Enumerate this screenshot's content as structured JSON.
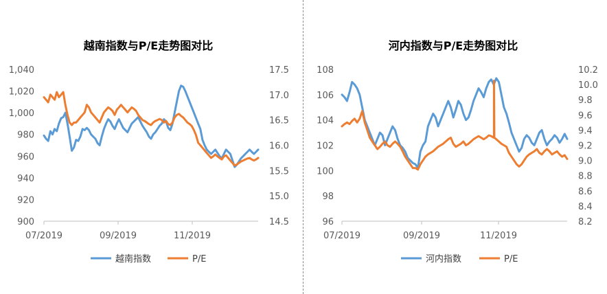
{
  "colors": {
    "index_line": "#5B9BD5",
    "pe_line": "#ED7D31",
    "axis": "#bfbfbf",
    "text": "#595959"
  },
  "chart_data": [
    {
      "type": "line",
      "title": "越南指数与P/E走势图对比",
      "x_tick_labels": [
        "07/2019",
        "09/2019",
        "11/2019"
      ],
      "y_left": {
        "ylim": [
          900,
          1040
        ],
        "ticks": [
          "1,040",
          "1,020",
          "1,000",
          "980",
          "960",
          "940",
          "920",
          "900"
        ]
      },
      "y_right": {
        "ylim": [
          14.5,
          17.5
        ],
        "ticks": [
          "17.5",
          "17.0",
          "16.5",
          "16.0",
          "15.5",
          "15.0",
          "14.5"
        ]
      },
      "legend_position": "bottom",
      "series": [
        {
          "name": "越南指数",
          "axis": "left",
          "color": "#5B9BD5",
          "values": [
            979,
            976,
            974,
            983,
            980,
            985,
            983,
            990,
            995,
            996,
            1000,
            990,
            978,
            965,
            968,
            975,
            974,
            978,
            985,
            984,
            986,
            984,
            980,
            978,
            976,
            972,
            970,
            978,
            985,
            990,
            994,
            992,
            988,
            985,
            990,
            994,
            990,
            986,
            984,
            982,
            986,
            990,
            992,
            994,
            996,
            992,
            988,
            985,
            982,
            978,
            976,
            980,
            982,
            985,
            988,
            990,
            994,
            992,
            986,
            984,
            990,
            1000,
            1010,
            1020,
            1025,
            1024,
            1020,
            1015,
            1010,
            1005,
            1000,
            995,
            990,
            985,
            975,
            970,
            966,
            964,
            962,
            964,
            966,
            963,
            960,
            958,
            962,
            966,
            964,
            962,
            956,
            950,
            952,
            955,
            958,
            960,
            962,
            964,
            966,
            964,
            962,
            964,
            966
          ]
        },
        {
          "name": "P/E",
          "axis": "right",
          "color": "#ED7D31",
          "values": [
            16.95,
            16.9,
            16.85,
            17.0,
            16.95,
            16.9,
            17.05,
            16.95,
            17.0,
            17.05,
            16.8,
            16.6,
            16.45,
            16.4,
            16.45,
            16.45,
            16.5,
            16.55,
            16.6,
            16.65,
            16.8,
            16.75,
            16.65,
            16.6,
            16.55,
            16.5,
            16.45,
            16.55,
            16.65,
            16.7,
            16.75,
            16.72,
            16.68,
            16.6,
            16.7,
            16.75,
            16.8,
            16.75,
            16.7,
            16.65,
            16.7,
            16.75,
            16.72,
            16.68,
            16.6,
            16.55,
            16.5,
            16.48,
            16.45,
            16.42,
            16.4,
            16.45,
            16.48,
            16.5,
            16.52,
            16.5,
            16.45,
            16.48,
            16.42,
            16.4,
            16.45,
            16.55,
            16.6,
            16.62,
            16.58,
            16.55,
            16.5,
            16.45,
            16.42,
            16.38,
            16.3,
            16.2,
            16.05,
            16.0,
            15.95,
            15.9,
            15.85,
            15.8,
            15.75,
            15.78,
            15.82,
            15.78,
            15.75,
            15.72,
            15.78,
            15.8,
            15.75,
            15.7,
            15.65,
            15.6,
            15.62,
            15.65,
            15.68,
            15.7,
            15.72,
            15.74,
            15.75,
            15.72,
            15.7,
            15.72,
            15.75
          ]
        }
      ]
    },
    {
      "type": "line",
      "title": "河内指数与P/E走势图对比",
      "x_tick_labels": [
        "07/2019",
        "09/2019",
        "11/2019"
      ],
      "y_left": {
        "ylim": [
          96,
          108
        ],
        "ticks": [
          "108",
          "106",
          "104",
          "102",
          "100",
          "98",
          "96"
        ]
      },
      "y_right": {
        "ylim": [
          8.2,
          10.2
        ],
        "ticks": [
          "10.2",
          "10.0",
          "9.8",
          "9.6",
          "9.4",
          "9.2",
          "9.0",
          "8.8",
          "8.6",
          "8.4",
          "8.2"
        ]
      },
      "legend_position": "bottom",
      "series": [
        {
          "name": "河内指数",
          "axis": "left",
          "color": "#5B9BD5",
          "values": [
            106.0,
            105.8,
            105.5,
            106.2,
            107.0,
            106.8,
            106.5,
            106.0,
            105.0,
            104.0,
            103.5,
            103.0,
            102.5,
            102.0,
            102.5,
            103.0,
            102.8,
            102.0,
            102.5,
            103.0,
            103.5,
            103.2,
            102.5,
            102.0,
            101.8,
            101.5,
            101.0,
            100.8,
            100.6,
            100.5,
            100.2,
            101.5,
            102.0,
            102.3,
            103.5,
            104.0,
            104.5,
            104.2,
            103.5,
            104.0,
            104.5,
            105.0,
            105.5,
            105.0,
            104.2,
            104.8,
            105.5,
            105.2,
            104.5,
            104.0,
            104.2,
            104.8,
            105.5,
            106.0,
            106.5,
            106.2,
            105.8,
            106.5,
            107.0,
            107.2,
            106.8,
            107.3,
            107.0,
            106.0,
            105.0,
            104.5,
            103.8,
            103.0,
            102.5,
            102.0,
            101.5,
            101.8,
            102.5,
            102.8,
            102.6,
            102.2,
            102.0,
            102.5,
            103.0,
            103.2,
            102.5,
            102.0,
            102.3,
            102.5,
            102.8,
            102.6,
            102.2,
            102.5,
            102.9,
            102.5
          ]
        },
        {
          "name": "P/E",
          "axis": "right",
          "color": "#ED7D31",
          "values": [
            9.45,
            9.48,
            9.5,
            9.48,
            9.52,
            9.55,
            9.5,
            9.55,
            9.65,
            9.5,
            9.4,
            9.3,
            9.25,
            9.2,
            9.15,
            9.18,
            9.22,
            9.25,
            9.2,
            9.18,
            9.22,
            9.25,
            9.22,
            9.18,
            9.12,
            9.05,
            9.0,
            8.95,
            8.9,
            8.9,
            8.88,
            8.95,
            9.0,
            9.05,
            9.08,
            9.1,
            9.12,
            9.15,
            9.18,
            9.2,
            9.22,
            9.25,
            9.28,
            9.3,
            9.22,
            9.18,
            9.2,
            9.22,
            9.25,
            9.2,
            9.22,
            9.25,
            9.28,
            9.3,
            9.32,
            9.3,
            9.28,
            9.3,
            9.33,
            9.32,
            9.3,
            9.28,
            9.25,
            9.22,
            9.2,
            9.18,
            9.1,
            9.05,
            9.0,
            8.95,
            8.92,
            8.95,
            9.0,
            9.05,
            9.08,
            9.1,
            9.12,
            9.15,
            9.1,
            9.08,
            9.12,
            9.15,
            9.12,
            9.08,
            9.1,
            9.12,
            9.08,
            9.05,
            9.07,
            9.02
          ],
          "spike": {
            "at": 0.675,
            "top": 10.05
          }
        }
      ]
    }
  ]
}
